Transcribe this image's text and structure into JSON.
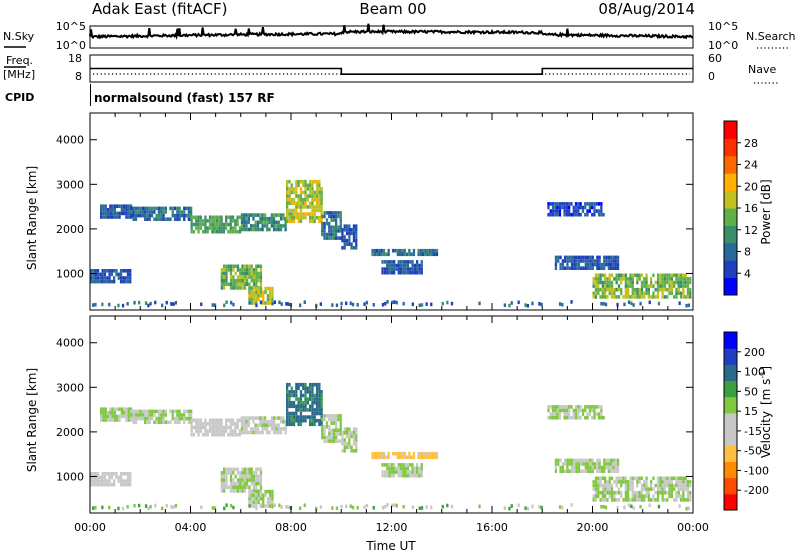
{
  "header": {
    "station": "Adak East (fitACF)",
    "beam": "Beam 00",
    "date": "08/Aug/2014"
  },
  "noise_panel": {
    "left_label": "N.Sky",
    "left_ticks": [
      "10^5",
      "10^0"
    ],
    "right_label": "N.Search",
    "right_ticks": [
      "10^5",
      "10^0"
    ]
  },
  "freq_panel": {
    "left_label_line1": "Freq.",
    "left_label_line2": "[MHz]",
    "left_ticks": [
      "18",
      "8"
    ],
    "right_label": "Nave",
    "right_ticks": [
      "60",
      "0"
    ],
    "step_series": [
      {
        "x": 0,
        "y": 13
      },
      {
        "x": 10,
        "y": 13
      },
      {
        "x": 10,
        "y": 10.3
      },
      {
        "x": 18,
        "y": 10.3
      },
      {
        "x": 18,
        "y": 13
      },
      {
        "x": 24,
        "y": 13
      }
    ]
  },
  "cpid_panel": {
    "label": "CPID",
    "mode_text": "normalsound (fast) 157 RF"
  },
  "colors": {
    "power_scale": [
      "#0000ff",
      "#1f3fbf",
      "#2a6a9a",
      "#3a8f6a",
      "#5fb04a",
      "#c0c020",
      "#ffb000",
      "#ff6a00",
      "#ff3000",
      "#ff0000"
    ],
    "velocity_scale": [
      "#ff0000",
      "#ff4a00",
      "#ff8c00",
      "#ffc040",
      "#c8c8c8",
      "#c8c8c8",
      "#80c840",
      "#3aa040",
      "#2a6a8a",
      "#1f3fbf",
      "#0000ff"
    ]
  },
  "chart_data": [
    {
      "type": "heatmap",
      "name": "power",
      "ylabel": "Slant Range [km]",
      "xlim_hours": [
        0,
        24
      ],
      "ylim": [
        180,
        4600
      ],
      "yticks": [
        1000,
        2000,
        3000,
        4000
      ],
      "colorbar": {
        "label": "Power [dB]",
        "ticks": [
          4,
          8,
          12,
          16,
          20,
          24,
          28
        ],
        "range": [
          0,
          30
        ]
      },
      "bands": [
        {
          "x0": 0.4,
          "x1": 1.6,
          "r0": 2250,
          "r1": 2550,
          "value": 6
        },
        {
          "x0": 1.6,
          "x1": 4.0,
          "r0": 2200,
          "r1": 2500,
          "value": 8
        },
        {
          "x0": 4.0,
          "x1": 6.0,
          "r0": 1950,
          "r1": 2300,
          "value": 12
        },
        {
          "x0": 6.0,
          "x1": 7.8,
          "r0": 2000,
          "r1": 2350,
          "value": 10
        },
        {
          "x0": 7.8,
          "x1": 9.2,
          "r0": 2200,
          "r1": 3100,
          "value": 16
        },
        {
          "x0": 9.2,
          "x1": 10.0,
          "r0": 1800,
          "r1": 2400,
          "value": 8
        },
        {
          "x0": 10.0,
          "x1": 10.6,
          "r0": 1600,
          "r1": 2100,
          "value": 6
        },
        {
          "x0": 0.0,
          "x1": 1.6,
          "r0": 800,
          "r1": 1100,
          "value": 6
        },
        {
          "x0": 5.2,
          "x1": 6.8,
          "r0": 700,
          "r1": 1200,
          "value": 14
        },
        {
          "x0": 6.3,
          "x1": 7.3,
          "r0": 300,
          "r1": 700,
          "value": 16
        },
        {
          "x0": 11.2,
          "x1": 13.8,
          "r0": 1400,
          "r1": 1550,
          "value": 8
        },
        {
          "x0": 11.6,
          "x1": 13.2,
          "r0": 1050,
          "r1": 1300,
          "value": 6
        },
        {
          "x0": 18.2,
          "x1": 20.4,
          "r0": 2300,
          "r1": 2600,
          "value": 5
        },
        {
          "x0": 18.5,
          "x1": 21.0,
          "r0": 1100,
          "r1": 1400,
          "value": 6
        },
        {
          "x0": 20.0,
          "x1": 23.9,
          "r0": 450,
          "r1": 1000,
          "value": 14
        }
      ]
    },
    {
      "type": "heatmap",
      "name": "velocity",
      "ylabel": "Slant Range [km]",
      "xlabel": "Time UT",
      "xlim_hours": [
        0,
        24
      ],
      "xticks": [
        "00:00",
        "04:00",
        "08:00",
        "12:00",
        "16:00",
        "20:00",
        "00:00"
      ],
      "ylim": [
        180,
        4600
      ],
      "yticks": [
        1000,
        2000,
        3000,
        4000
      ],
      "colorbar": {
        "label_main": "Velocity",
        "label_unit": "[m s",
        "label_exp": "-1",
        "label_close": "]",
        "ticks": [
          "200",
          "100",
          "50",
          "15",
          "-15",
          "-50",
          "-100",
          "-200"
        ]
      },
      "bands": [
        {
          "x0": 0.4,
          "x1": 1.6,
          "r0": 2250,
          "r1": 2550,
          "value": 0
        },
        {
          "x0": 1.6,
          "x1": 4.0,
          "r0": 2200,
          "r1": 2500,
          "value": 0
        },
        {
          "x0": 4.0,
          "x1": 6.0,
          "r0": 1950,
          "r1": 2300,
          "value": -20
        },
        {
          "x0": 6.0,
          "x1": 7.8,
          "r0": 2000,
          "r1": 2350,
          "value": -10
        },
        {
          "x0": 7.8,
          "x1": 9.2,
          "r0": 2200,
          "r1": 3100,
          "value": 60
        },
        {
          "x0": 9.2,
          "x1": 10.0,
          "r0": 1800,
          "r1": 2400,
          "value": 0
        },
        {
          "x0": 10.0,
          "x1": 10.6,
          "r0": 1600,
          "r1": 2100,
          "value": 0
        },
        {
          "x0": 0.0,
          "x1": 1.6,
          "r0": 800,
          "r1": 1100,
          "value": -30
        },
        {
          "x0": 5.2,
          "x1": 6.8,
          "r0": 700,
          "r1": 1200,
          "value": 0
        },
        {
          "x0": 6.3,
          "x1": 7.3,
          "r0": 300,
          "r1": 700,
          "value": 0
        },
        {
          "x0": 11.2,
          "x1": 13.8,
          "r0": 1400,
          "r1": 1550,
          "value": -60
        },
        {
          "x0": 11.6,
          "x1": 13.2,
          "r0": 1050,
          "r1": 1300,
          "value": 0
        },
        {
          "x0": 18.2,
          "x1": 20.4,
          "r0": 2300,
          "r1": 2600,
          "value": 0
        },
        {
          "x0": 18.5,
          "x1": 21.0,
          "r0": 1100,
          "r1": 1400,
          "value": 0
        },
        {
          "x0": 20.0,
          "x1": 23.9,
          "r0": 450,
          "r1": 1000,
          "value": 0
        }
      ]
    }
  ]
}
